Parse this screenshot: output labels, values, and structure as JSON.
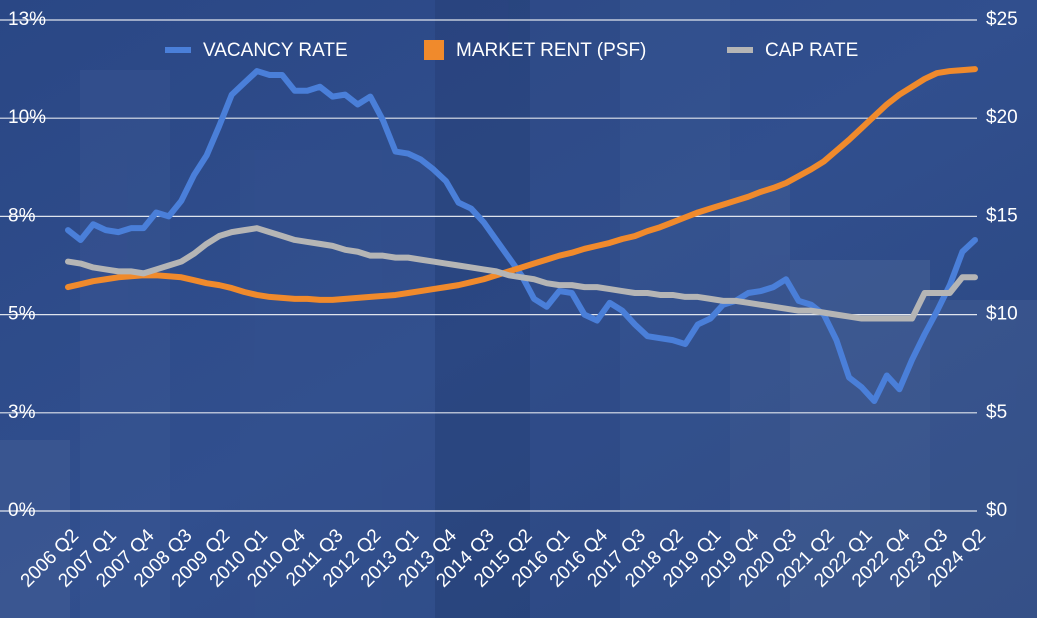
{
  "chart_data": {
    "type": "line",
    "categories": [
      "2006 Q2",
      null,
      null,
      "2007 Q1",
      null,
      null,
      "2007 Q4",
      null,
      null,
      "2008 Q3",
      null,
      null,
      "2009 Q2",
      null,
      null,
      "2010 Q1",
      null,
      null,
      "2010 Q4",
      null,
      null,
      "2011 Q3",
      null,
      null,
      "2012 Q2",
      null,
      null,
      "2013 Q1",
      null,
      null,
      "2013 Q4",
      null,
      null,
      "2014 Q3",
      null,
      null,
      "2015 Q2",
      null,
      null,
      "2016 Q1",
      null,
      null,
      "2016 Q4",
      null,
      null,
      "2017 Q3",
      null,
      null,
      "2018 Q2",
      null,
      null,
      "2019 Q1",
      null,
      null,
      "2019 Q4",
      null,
      null,
      "2020 Q3",
      null,
      null,
      "2021 Q2",
      null,
      null,
      "2022 Q1",
      null,
      null,
      "2022 Q4",
      null,
      null,
      "2023 Q3",
      null,
      null,
      "2024 Q2"
    ],
    "series": [
      {
        "name": "VACANCY RATE",
        "color": "#4a7fd9",
        "axis": "y",
        "values": [
          7.15,
          6.9,
          7.3,
          7.15,
          7.1,
          7.2,
          7.2,
          7.6,
          7.5,
          7.9,
          8.55,
          9.05,
          9.8,
          10.6,
          10.9,
          11.2,
          11.1,
          11.1,
          10.7,
          10.7,
          10.8,
          10.55,
          10.6,
          10.35,
          10.55,
          9.95,
          9.15,
          9.1,
          8.95,
          8.7,
          8.4,
          7.85,
          7.7,
          7.35,
          6.9,
          6.45,
          6.0,
          5.4,
          5.2,
          5.6,
          5.55,
          5.0,
          4.85,
          5.3,
          5.1,
          4.75,
          4.45,
          4.4,
          4.35,
          4.25,
          4.75,
          4.9,
          5.25,
          5.35,
          5.55,
          5.6,
          5.7,
          5.9,
          5.35,
          5.25,
          5.0,
          4.35,
          3.4,
          3.15,
          2.8,
          3.45,
          3.1,
          3.85,
          4.5,
          5.1,
          5.75,
          6.6,
          6.9
        ]
      },
      {
        "name": "MARKET RENT (PSF)",
        "color": "#f08a2c",
        "axis": "y2",
        "values": [
          11.4,
          11.55,
          11.7,
          11.8,
          11.9,
          11.95,
          12.0,
          12.0,
          11.95,
          11.9,
          11.75,
          11.6,
          11.5,
          11.35,
          11.15,
          11.0,
          10.9,
          10.85,
          10.8,
          10.8,
          10.75,
          10.75,
          10.8,
          10.85,
          10.9,
          10.95,
          11.0,
          11.1,
          11.2,
          11.3,
          11.4,
          11.5,
          11.65,
          11.8,
          12.0,
          12.2,
          12.4,
          12.6,
          12.8,
          13.0,
          13.15,
          13.35,
          13.5,
          13.65,
          13.85,
          14.0,
          14.25,
          14.45,
          14.7,
          14.95,
          15.2,
          15.4,
          15.6,
          15.8,
          16.0,
          16.25,
          16.45,
          16.7,
          17.05,
          17.4,
          17.8,
          18.35,
          18.9,
          19.5,
          20.1,
          20.7,
          21.2,
          21.6,
          22.0,
          22.3,
          22.4,
          22.45,
          22.5
        ]
      },
      {
        "name": "CAP RATE",
        "color": "#b5b5b5",
        "axis": "y",
        "values": [
          6.35,
          6.3,
          6.2,
          6.15,
          6.1,
          6.1,
          6.05,
          6.15,
          6.25,
          6.35,
          6.55,
          6.8,
          7.0,
          7.1,
          7.15,
          7.2,
          7.1,
          7.0,
          6.9,
          6.85,
          6.8,
          6.75,
          6.65,
          6.6,
          6.5,
          6.5,
          6.45,
          6.45,
          6.4,
          6.35,
          6.3,
          6.25,
          6.2,
          6.15,
          6.1,
          6.0,
          5.95,
          5.9,
          5.8,
          5.75,
          5.75,
          5.7,
          5.7,
          5.65,
          5.6,
          5.55,
          5.55,
          5.5,
          5.5,
          5.45,
          5.45,
          5.4,
          5.35,
          5.35,
          5.3,
          5.25,
          5.2,
          5.15,
          5.1,
          5.1,
          5.05,
          5.0,
          4.95,
          4.9,
          4.9,
          4.9,
          4.9,
          4.9,
          5.55,
          5.55,
          5.55,
          5.95,
          5.95
        ]
      }
    ],
    "ylim": [
      0,
      12.5
    ],
    "yticks": [
      {
        "value": 0,
        "label": "0%"
      },
      {
        "value": 2.5,
        "label": "3%"
      },
      {
        "value": 5,
        "label": "5%"
      },
      {
        "value": 7.5,
        "label": "8%"
      },
      {
        "value": 10,
        "label": "10%"
      },
      {
        "value": 12.5,
        "label": "13%"
      }
    ],
    "y2lim": [
      0,
      25
    ],
    "y2ticks": [
      {
        "value": 0,
        "label": "$0"
      },
      {
        "value": 5,
        "label": "$5"
      },
      {
        "value": 10,
        "label": "$10"
      },
      {
        "value": 15,
        "label": "$15"
      },
      {
        "value": 20,
        "label": "$20"
      },
      {
        "value": 25,
        "label": "$25"
      }
    ],
    "grid": true,
    "legend": "top"
  }
}
